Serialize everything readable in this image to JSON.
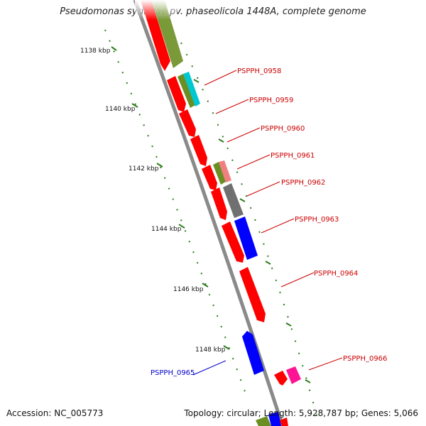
{
  "title": "Pseudomonas syringae pv. phaseolicola 1448A, complete genome",
  "footer": {
    "accession": "Accession: NC_005773",
    "summary": "Topology: circular; Length: 5,928,787 bp; Genes: 5,066"
  },
  "colors": {
    "backbone": "#8a8a8a",
    "forward_label": "#cc0000",
    "reverse_label": "#0000cc",
    "tick": "#2e7d1e"
  },
  "ticks": [
    "1138 kbp",
    "1140 kbp",
    "1142 kbp",
    "1144 kbp",
    "1146 kbp",
    "1148 kbp"
  ],
  "genes": [
    {
      "label": "PSPPH_0958",
      "color": "#cc0000"
    },
    {
      "label": "PSPPH_0959",
      "color": "#cc0000"
    },
    {
      "label": "PSPPH_0960",
      "color": "#cc0000"
    },
    {
      "label": "PSPPH_0961",
      "color": "#cc0000"
    },
    {
      "label": "PSPPH_0962",
      "color": "#cc0000"
    },
    {
      "label": "PSPPH_0963",
      "color": "#cc0000"
    },
    {
      "label": "PSPPH_0964",
      "color": "#cc0000"
    },
    {
      "label": "PSPPH_0965",
      "color": "#0000cc"
    },
    {
      "label": "PSPPH_0966",
      "color": "#cc0000"
    }
  ],
  "feature_colors": {
    "cds_forward": "#ff0000",
    "cds_reverse": "#0000ff",
    "cog_olive": "#6b8e23",
    "cog_cyan": "#00c8d0",
    "cog_grey": "#707070",
    "cog_salmon": "#f08080",
    "cog_pink": "#ff1493"
  }
}
